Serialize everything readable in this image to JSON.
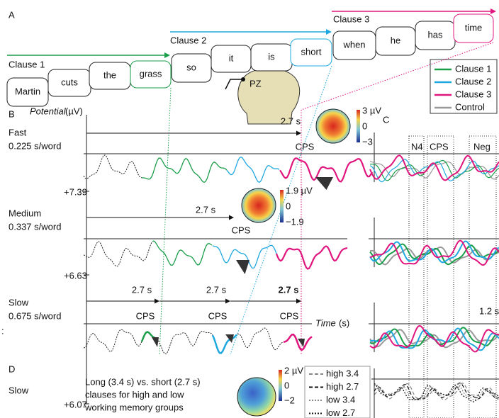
{
  "panel_labels": {
    "a": "A",
    "b": "B",
    "c": "C",
    "d": "D"
  },
  "margin_mark": ":",
  "sentence": {
    "clauses": [
      "Clause 1",
      "Clause 2",
      "Clause 3"
    ],
    "words": [
      "Martin",
      "cuts",
      "the",
      "grass",
      "so",
      "it",
      "is",
      "short",
      "when",
      "he",
      "has",
      "time"
    ]
  },
  "electrode": "PZ",
  "legend": [
    {
      "name": "Clause 1",
      "color": "#1a9e4a"
    },
    {
      "name": "Clause 2",
      "color": "#1fa8e0"
    },
    {
      "name": "Clause 3",
      "color": "#e0157d"
    },
    {
      "name": "Control",
      "color": "#999999"
    }
  ],
  "panel_b": {
    "y_label": "Potential",
    "y_unit": "(µV)",
    "x_label": "Time",
    "x_unit": "(s)",
    "rows": [
      {
        "title": "Fast",
        "rate": "0.225 s/word",
        "scale": "+7.39",
        "durations": [
          "2.7 s"
        ],
        "cps": [
          "CPS"
        ],
        "topo": [
          "3 µV",
          "0",
          "−3"
        ]
      },
      {
        "title": "Medium",
        "rate": "0.337 s/word",
        "scale": "+6.63",
        "durations": [
          "2.7 s"
        ],
        "cps": [
          "CPS"
        ],
        "topo": [
          "1.9 µV",
          "0",
          "−1.9"
        ]
      },
      {
        "title": "Slow",
        "rate": "0.675 s/word",
        "scale": "+6.07",
        "durations": [
          "2.7 s",
          "2.7 s",
          "2.7 s"
        ],
        "cps": [
          "CPS",
          "CPS",
          "CPS"
        ]
      }
    ]
  },
  "panel_c": {
    "windows": [
      "N4",
      "CPS",
      "Neg"
    ],
    "scale": "1.2 s"
  },
  "panel_d": {
    "title": "Slow",
    "description": [
      "Long (3.4 s) vs. short (2.7 s)",
      "clauses for high and low",
      "working memory groups"
    ],
    "topo": [
      "2 µV",
      "0",
      "−2"
    ],
    "legend": [
      "high 3.4",
      "high 2.7",
      "low 3.4",
      "low 2.7"
    ]
  }
}
